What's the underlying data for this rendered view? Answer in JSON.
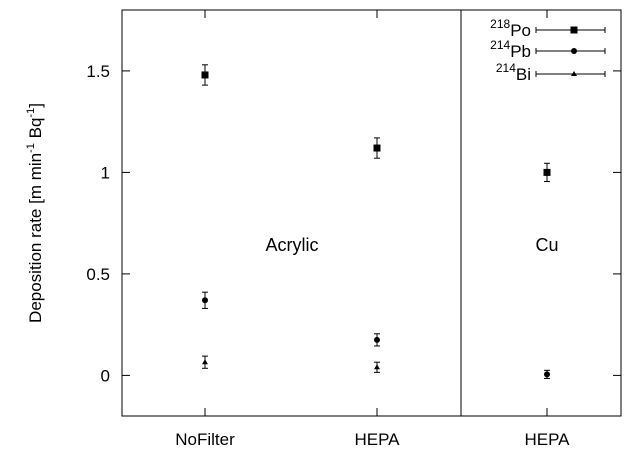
{
  "chart_data": {
    "type": "scatter",
    "ylabel": "Deposition rate [m min^-1 Bq^-1]",
    "ylim": [
      -0.2,
      1.8
    ],
    "yticks": [
      0,
      0.5,
      1,
      1.5
    ],
    "ytick_labels": [
      "0",
      "0.5",
      "1",
      "1.5"
    ],
    "categories": [
      "NoFilter",
      "HEPA",
      "HEPA"
    ],
    "panel_labels": [
      {
        "text": "Acrylic",
        "at": "left-panel-center"
      },
      {
        "text": "Cu",
        "at": "right-panel-center"
      }
    ],
    "legend_position": "top-right",
    "series": [
      {
        "name": "218Po",
        "marker": "square",
        "values": [
          1.48,
          1.12,
          1.0
        ],
        "errors": [
          0.05,
          0.05,
          0.045
        ]
      },
      {
        "name": "214Pb",
        "marker": "circle",
        "values": [
          0.37,
          0.175,
          0.005
        ],
        "errors": [
          0.04,
          0.03,
          0.02
        ]
      },
      {
        "name": "214Bi",
        "marker": "triangle",
        "values": [
          0.065,
          0.04,
          null
        ],
        "errors": [
          0.03,
          0.025,
          null
        ]
      }
    ]
  },
  "legend": [
    {
      "mass": "218",
      "element": "Po"
    },
    {
      "mass": "214",
      "element": "Pb"
    },
    {
      "mass": "214",
      "element": "Bi"
    }
  ],
  "ylabel_parts": {
    "main": "Deposition rate [m min",
    "exp1": "-1",
    "mid": " Bq",
    "exp2": "-1",
    "end": "]"
  }
}
